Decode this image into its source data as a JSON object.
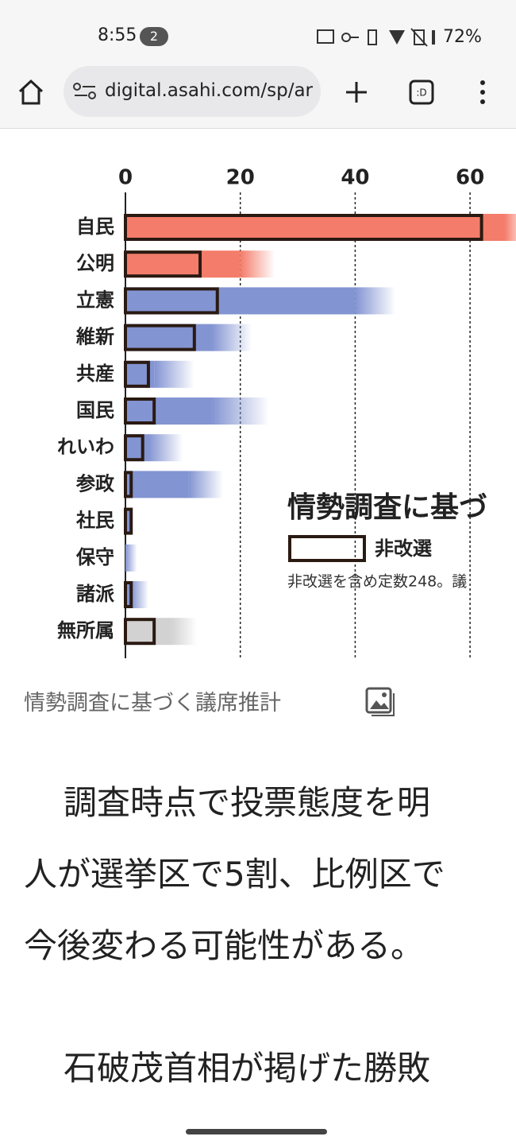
{
  "status_bar": {
    "time": "8:55",
    "notifications": "2",
    "battery": "72%"
  },
  "browser": {
    "url": "digital.asahi.com/sp/ar"
  },
  "chart_data": {
    "type": "bar",
    "orientation": "horizontal",
    "title": "情勢調査に基づ",
    "categories": [
      "自民",
      "公明",
      "立憲",
      "維新",
      "共産",
      "国民",
      "れいわ",
      "参政",
      "社民",
      "保守",
      "諸派",
      "無所属"
    ],
    "series": [
      {
        "name": "非改選",
        "values": [
          62,
          13,
          16,
          12,
          4,
          5,
          3,
          1,
          1,
          0,
          1,
          5
        ]
      }
    ],
    "estimate_low": [
      66,
      20,
      40,
      15,
      5,
      15,
      4,
      11,
      null,
      0,
      1,
      8
    ],
    "estimate_high": [
      70,
      26,
      47,
      22,
      12,
      25,
      10,
      17,
      null,
      2,
      4,
      12.5
    ],
    "colors": [
      "#f47c6a",
      "#f47c6a",
      "#8394d2",
      "#8394d2",
      "#8394d2",
      "#8394d2",
      "#8394d2",
      "#8394d2",
      "#8394d2",
      "#8394d2",
      "#8394d2",
      "#d2d2d2"
    ],
    "note": "非改選を含め定数248。議",
    "xlim": [
      0,
      68
    ],
    "xticks": [
      0,
      20,
      40,
      60
    ],
    "grid": true
  },
  "caption": "情勢調査に基づく議席推計",
  "article": {
    "paragraphs": [
      [
        "調査時点で投票態度を明",
        "人が選挙区で5割、比例区で",
        "今後変わる可能性がある。"
      ],
      [
        "石破茂首相が掲げた勝敗"
      ]
    ]
  }
}
